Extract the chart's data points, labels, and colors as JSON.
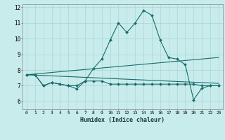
{
  "xlabel": "Humidex (Indice chaleur)",
  "bg_color": "#c8ecec",
  "grid_color": "#aad4d4",
  "line_color": "#1a6b6b",
  "xlim": [
    -0.5,
    23.5
  ],
  "ylim": [
    5.5,
    12.2
  ],
  "yticks": [
    6,
    7,
    8,
    9,
    10,
    11,
    12
  ],
  "xticks": [
    0,
    1,
    2,
    3,
    4,
    5,
    6,
    7,
    8,
    9,
    10,
    11,
    12,
    13,
    14,
    15,
    16,
    17,
    18,
    19,
    20,
    21,
    22,
    23
  ],
  "lines": [
    {
      "x": [
        0,
        1,
        2,
        3,
        4,
        5,
        6,
        7,
        8,
        9,
        10,
        11,
        12,
        13,
        14,
        15,
        16,
        17,
        18,
        19,
        20,
        21,
        22,
        23
      ],
      "y": [
        7.7,
        7.7,
        7.0,
        7.2,
        7.1,
        7.0,
        6.8,
        7.3,
        8.1,
        8.7,
        9.9,
        11.0,
        10.4,
        11.0,
        11.8,
        11.5,
        9.9,
        8.8,
        8.7,
        8.35,
        6.1,
        6.85,
        7.0,
        7.0
      ],
      "marker": true
    },
    {
      "x": [
        0,
        1,
        2,
        3,
        4,
        5,
        6,
        7,
        8,
        9,
        10,
        11,
        12,
        13,
        14,
        15,
        16,
        17,
        18,
        19,
        20,
        21,
        22,
        23
      ],
      "y": [
        7.7,
        7.7,
        7.0,
        7.2,
        7.1,
        7.0,
        7.0,
        7.3,
        7.3,
        7.3,
        7.1,
        7.1,
        7.1,
        7.1,
        7.1,
        7.1,
        7.1,
        7.1,
        7.1,
        7.1,
        7.1,
        7.0,
        7.0,
        7.0
      ],
      "marker": true
    },
    {
      "x": [
        0,
        23
      ],
      "y": [
        7.7,
        8.8
      ],
      "marker": false
    },
    {
      "x": [
        0,
        23
      ],
      "y": [
        7.7,
        7.15
      ],
      "marker": false
    }
  ]
}
